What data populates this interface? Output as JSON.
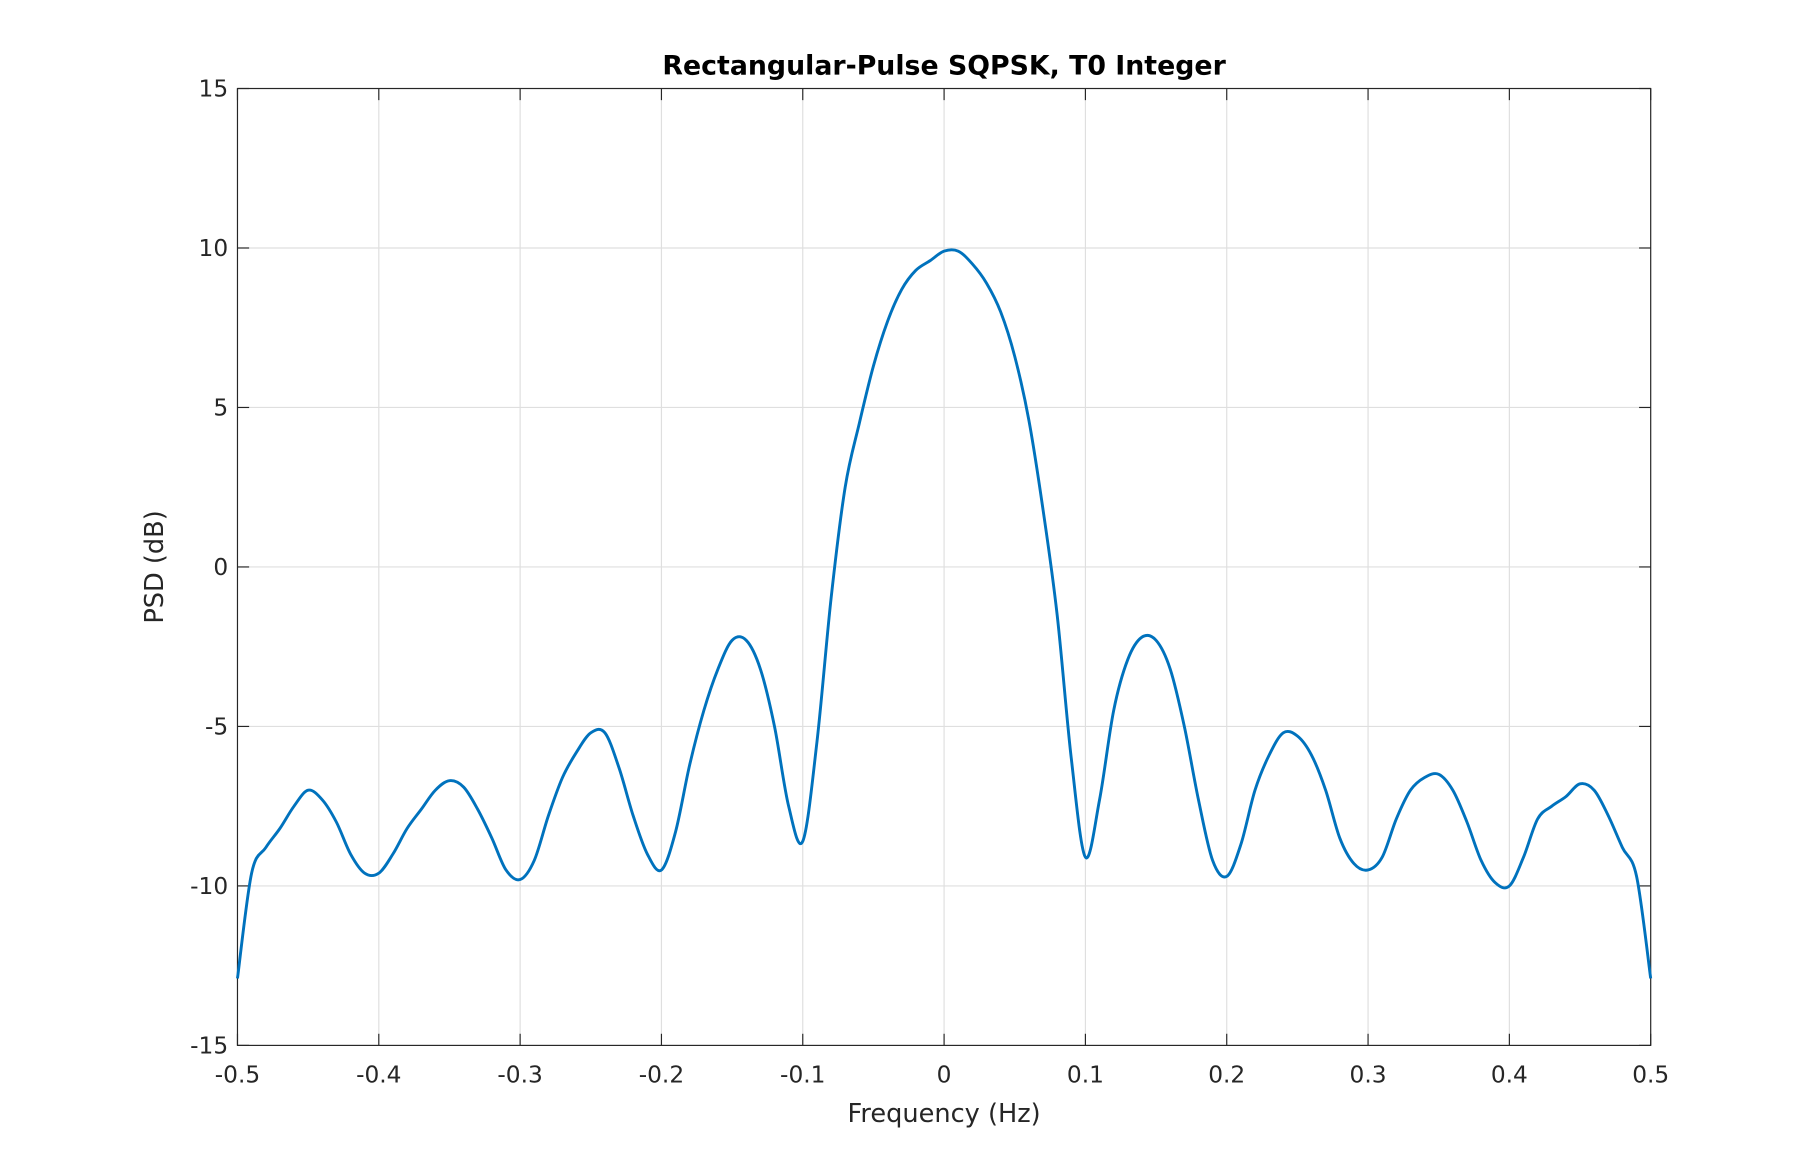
{
  "chart_data": {
    "type": "line",
    "title": "Rectangular-Pulse SQPSK, T0 Integer",
    "xlabel": "Frequency (Hz)",
    "ylabel": "PSD (dB)",
    "xlim": [
      -0.5,
      0.5
    ],
    "ylim": [
      -15,
      15
    ],
    "grid": true,
    "xticks": [
      -0.5,
      -0.4,
      -0.3,
      -0.2,
      -0.1,
      0,
      0.1,
      0.2,
      0.3,
      0.4,
      0.5
    ],
    "xtick_labels": [
      "-0.5",
      "-0.4",
      "-0.3",
      "-0.2",
      "-0.1",
      "0",
      "0.1",
      "0.2",
      "0.3",
      "0.4",
      "0.5"
    ],
    "yticks": [
      -15,
      -10,
      -5,
      0,
      5,
      10,
      15
    ],
    "ytick_labels": [
      "-15",
      "-10",
      "-5",
      "0",
      "5",
      "10",
      "15"
    ],
    "line_color": "#0072BD",
    "series": [
      {
        "name": "PSD",
        "x": [
          -0.5,
          -0.49,
          -0.48,
          -0.47,
          -0.46,
          -0.45,
          -0.44,
          -0.43,
          -0.42,
          -0.41,
          -0.4,
          -0.39,
          -0.38,
          -0.37,
          -0.36,
          -0.35,
          -0.34,
          -0.33,
          -0.32,
          -0.31,
          -0.3,
          -0.29,
          -0.28,
          -0.27,
          -0.26,
          -0.25,
          -0.24,
          -0.23,
          -0.22,
          -0.21,
          -0.2,
          -0.19,
          -0.18,
          -0.17,
          -0.16,
          -0.15,
          -0.14,
          -0.13,
          -0.12,
          -0.11,
          -0.1,
          -0.09,
          -0.08,
          -0.07,
          -0.06,
          -0.05,
          -0.04,
          -0.03,
          -0.02,
          -0.01,
          0,
          0.01,
          0.02,
          0.03,
          0.04,
          0.05,
          0.06,
          0.07,
          0.08,
          0.09,
          0.1,
          0.11,
          0.12,
          0.13,
          0.14,
          0.15,
          0.16,
          0.17,
          0.18,
          0.19,
          0.2,
          0.21,
          0.22,
          0.23,
          0.24,
          0.25,
          0.26,
          0.27,
          0.28,
          0.29,
          0.3,
          0.31,
          0.32,
          0.33,
          0.34,
          0.35,
          0.36,
          0.37,
          0.38,
          0.39,
          0.4,
          0.41,
          0.42,
          0.43,
          0.44,
          0.45,
          0.46,
          0.47,
          0.48,
          0.49,
          0.5
        ],
        "y": [
          -12.9,
          -9.6,
          -8.8,
          -8.2,
          -7.5,
          -7.0,
          -7.3,
          -8.0,
          -9.0,
          -9.6,
          -9.6,
          -9.0,
          -8.2,
          -7.6,
          -7.0,
          -6.7,
          -6.9,
          -7.6,
          -8.5,
          -9.5,
          -9.8,
          -9.2,
          -7.8,
          -6.6,
          -5.8,
          -5.2,
          -5.2,
          -6.3,
          -7.8,
          -9.0,
          -9.5,
          -8.3,
          -6.2,
          -4.5,
          -3.2,
          -2.3,
          -2.3,
          -3.2,
          -5.0,
          -7.5,
          -8.6,
          -5.5,
          -1.0,
          2.5,
          4.5,
          6.3,
          7.7,
          8.7,
          9.3,
          9.6,
          9.9,
          9.9,
          9.5,
          8.9,
          8.0,
          6.6,
          4.6,
          1.8,
          -1.5,
          -6.0,
          -9.1,
          -7.3,
          -4.5,
          -2.9,
          -2.2,
          -2.3,
          -3.2,
          -5.0,
          -7.3,
          -9.2,
          -9.7,
          -8.7,
          -7.0,
          -5.9,
          -5.2,
          -5.3,
          -5.9,
          -7.0,
          -8.5,
          -9.3,
          -9.5,
          -9.1,
          -7.9,
          -7.0,
          -6.6,
          -6.5,
          -7.0,
          -8.0,
          -9.2,
          -9.9,
          -10.0,
          -9.1,
          -7.9,
          -7.5,
          -7.2,
          -6.8,
          -7.0,
          -7.8,
          -8.8,
          -9.7,
          -12.9
        ]
      }
    ]
  }
}
